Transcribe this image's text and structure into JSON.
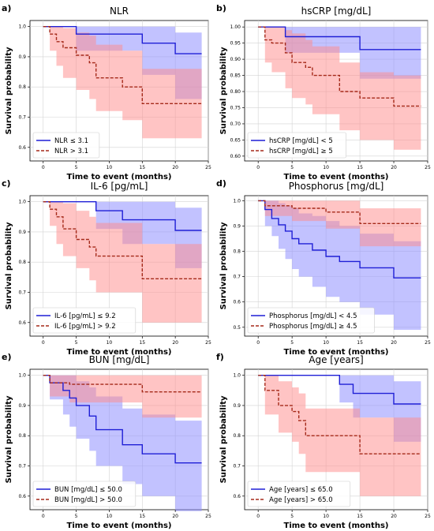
{
  "colors": {
    "group_low": "#1f1fd6",
    "group_high": "#a52a1a",
    "band_low": "#8f8fff",
    "band_high": "#ff8a8a"
  },
  "chart_data": [
    {
      "letter": "a)",
      "type": "line",
      "title": "NLR",
      "xlabel": "Time to event (months)",
      "ylabel": "Survival probability",
      "xlim": [
        -2,
        25
      ],
      "ylim": [
        0.555,
        1.02
      ],
      "xticks": [
        0,
        5,
        10,
        15,
        20,
        25
      ],
      "yticks": [
        0.6,
        0.7,
        0.8,
        0.9,
        1.0
      ],
      "ytick_labels": [
        "0.6",
        "0.7",
        "0.8",
        "0.9",
        "1.0"
      ],
      "grid": true,
      "legend_placement": "lower-left",
      "series": [
        {
          "name": "NLR ≤ 3.1",
          "style": "solid",
          "x": [
            0,
            5,
            15,
            20,
            24
          ],
          "y": [
            1.0,
            0.975,
            0.945,
            0.91,
            0.91
          ],
          "lower": [
            1.0,
            0.92,
            0.84,
            0.76,
            0.76
          ],
          "upper": [
            1.0,
            1.0,
            1.0,
            0.98,
            0.98
          ]
        },
        {
          "name": "NLR > 3.1",
          "style": "dashed",
          "x": [
            0,
            1,
            2,
            3,
            5,
            7,
            8,
            12,
            15,
            24
          ],
          "y": [
            1.0,
            0.975,
            0.95,
            0.93,
            0.905,
            0.88,
            0.83,
            0.8,
            0.745,
            0.745
          ],
          "lower": [
            1.0,
            0.92,
            0.87,
            0.83,
            0.79,
            0.76,
            0.72,
            0.69,
            0.63,
            0.63
          ],
          "upper": [
            1.0,
            1.0,
            1.0,
            0.995,
            0.98,
            0.97,
            0.94,
            0.92,
            0.86,
            0.86
          ]
        }
      ]
    },
    {
      "letter": "b)",
      "type": "line",
      "title": "hsCRP [mg/dL]",
      "xlabel": "Time to event (months)",
      "ylabel": "Survival probability",
      "xlim": [
        -2,
        25
      ],
      "ylim": [
        0.585,
        1.02
      ],
      "xticks": [
        0,
        5,
        10,
        15,
        20,
        25
      ],
      "yticks": [
        0.6,
        0.65,
        0.7,
        0.75,
        0.8,
        0.85,
        0.9,
        0.95,
        1.0
      ],
      "ytick_labels": [
        "0.60",
        "0.65",
        "0.70",
        "0.75",
        "0.80",
        "0.85",
        "0.90",
        "0.95",
        "1.00"
      ],
      "grid": true,
      "legend_placement": "lower-left",
      "series": [
        {
          "name": "hsCRP [mg/dL] < 5",
          "style": "solid",
          "x": [
            0,
            4,
            15,
            24
          ],
          "y": [
            1.0,
            0.97,
            0.93,
            0.93
          ],
          "lower": [
            1.0,
            0.92,
            0.84,
            0.84
          ],
          "upper": [
            1.0,
            1.0,
            1.0,
            1.0
          ]
        },
        {
          "name": "hsCRP [mg/dL] ≥ 5",
          "style": "dashed",
          "x": [
            0,
            1,
            2,
            4,
            5,
            7,
            8,
            12,
            15,
            20,
            24
          ],
          "y": [
            1.0,
            0.96,
            0.95,
            0.92,
            0.89,
            0.875,
            0.85,
            0.8,
            0.78,
            0.755,
            0.755
          ],
          "lower": [
            1.0,
            0.89,
            0.86,
            0.81,
            0.78,
            0.76,
            0.73,
            0.68,
            0.65,
            0.62,
            0.62
          ],
          "upper": [
            1.0,
            1.0,
            1.0,
            0.99,
            0.98,
            0.96,
            0.94,
            0.89,
            0.86,
            0.85,
            0.85
          ]
        }
      ]
    },
    {
      "letter": "c)",
      "type": "line",
      "title": "IL-6 [pg/mL]",
      "xlabel": "Time to event (months)",
      "ylabel": "Survival probability",
      "xlim": [
        -2,
        25
      ],
      "ylim": [
        0.555,
        1.02
      ],
      "xticks": [
        0,
        5,
        10,
        15,
        20,
        25
      ],
      "yticks": [
        0.6,
        0.7,
        0.8,
        0.9,
        1.0
      ],
      "ytick_labels": [
        "0.6",
        "0.7",
        "0.8",
        "0.9",
        "1.0"
      ],
      "grid": true,
      "legend_placement": "lower-left",
      "series": [
        {
          "name": "IL-6 [pg/mL] ≤ 9.2",
          "style": "solid",
          "x": [
            0,
            8,
            12,
            20,
            24
          ],
          "y": [
            1.0,
            0.97,
            0.94,
            0.905,
            0.905
          ],
          "lower": [
            1.0,
            0.91,
            0.86,
            0.78,
            0.78
          ],
          "upper": [
            1.0,
            1.0,
            1.0,
            0.98,
            0.98
          ]
        },
        {
          "name": "IL-6 [pg/mL] > 9.2",
          "style": "dashed",
          "x": [
            0,
            1,
            2,
            3,
            5,
            7,
            8,
            15,
            24
          ],
          "y": [
            1.0,
            0.975,
            0.95,
            0.91,
            0.875,
            0.85,
            0.82,
            0.745,
            0.745
          ],
          "lower": [
            1.0,
            0.92,
            0.86,
            0.82,
            0.78,
            0.74,
            0.7,
            0.6,
            0.6
          ],
          "upper": [
            1.0,
            1.0,
            1.0,
            0.995,
            0.97,
            0.95,
            0.93,
            0.86,
            0.86
          ]
        }
      ]
    },
    {
      "letter": "d)",
      "type": "line",
      "title": "Phosphorus [mg/dL]",
      "xlabel": "Time to event (months)",
      "ylabel": "Survival probability",
      "xlim": [
        -2,
        25
      ],
      "ylim": [
        0.465,
        1.02
      ],
      "xticks": [
        0,
        5,
        10,
        15,
        20,
        25
      ],
      "yticks": [
        0.5,
        0.6,
        0.7,
        0.8,
        0.9,
        1.0
      ],
      "ytick_labels": [
        "0.5",
        "0.6",
        "0.7",
        "0.8",
        "0.9",
        "1.0"
      ],
      "grid": true,
      "legend_placement": "lower-left",
      "series": [
        {
          "name": "Phosphorus [mg/dL] < 4.5",
          "style": "solid",
          "x": [
            0,
            1,
            2,
            3,
            4,
            5,
            6,
            8,
            10,
            12,
            15,
            20,
            24
          ],
          "y": [
            1.0,
            0.965,
            0.93,
            0.905,
            0.88,
            0.85,
            0.83,
            0.805,
            0.78,
            0.76,
            0.735,
            0.695,
            0.695
          ],
          "lower": [
            1.0,
            0.9,
            0.86,
            0.81,
            0.77,
            0.73,
            0.7,
            0.66,
            0.62,
            0.6,
            0.55,
            0.49,
            0.49
          ],
          "upper": [
            1.0,
            1.0,
            1.0,
            0.99,
            0.98,
            0.97,
            0.95,
            0.94,
            0.92,
            0.9,
            0.87,
            0.84,
            0.84
          ]
        },
        {
          "name": "Phosphorus [mg/dL] ≥ 4.5",
          "style": "dashed",
          "x": [
            0,
            1,
            5,
            10,
            15,
            24
          ],
          "y": [
            1.0,
            0.98,
            0.97,
            0.955,
            0.91,
            0.91
          ],
          "lower": [
            1.0,
            0.94,
            0.92,
            0.89,
            0.82,
            0.82
          ],
          "upper": [
            1.0,
            1.0,
            1.0,
            1.0,
            0.97,
            0.97
          ]
        }
      ]
    },
    {
      "letter": "e)",
      "type": "line",
      "title": "BUN [mg/dL]",
      "xlabel": "Time to event (months)",
      "ylabel": "Survival probability",
      "xlim": [
        -2,
        25
      ],
      "ylim": [
        0.555,
        1.02
      ],
      "xticks": [
        0,
        5,
        10,
        15,
        20,
        25
      ],
      "yticks": [
        0.6,
        0.7,
        0.8,
        0.9,
        1.0
      ],
      "ytick_labels": [
        "0.6",
        "0.7",
        "0.8",
        "0.9",
        "1.0"
      ],
      "grid": true,
      "legend_placement": "lower-left",
      "series": [
        {
          "name": "BUN [mg/dL] ≤ 50.0",
          "style": "solid",
          "x": [
            0,
            1,
            3,
            4,
            5,
            7,
            8,
            12,
            15,
            20,
            24
          ],
          "y": [
            1.0,
            0.975,
            0.95,
            0.925,
            0.9,
            0.865,
            0.82,
            0.77,
            0.74,
            0.71,
            0.71
          ],
          "lower": [
            1.0,
            0.92,
            0.87,
            0.83,
            0.79,
            0.75,
            0.7,
            0.64,
            0.6,
            0.55,
            0.55
          ],
          "upper": [
            1.0,
            1.0,
            1.0,
            1.0,
            0.98,
            0.96,
            0.93,
            0.89,
            0.87,
            0.85,
            0.85
          ]
        },
        {
          "name": "BUN [mg/dL] > 50.0",
          "style": "dashed",
          "x": [
            0,
            1,
            4,
            15,
            24
          ],
          "y": [
            1.0,
            0.975,
            0.97,
            0.945,
            0.945
          ],
          "lower": [
            1.0,
            0.93,
            0.91,
            0.86,
            0.86
          ],
          "upper": [
            1.0,
            1.0,
            1.0,
            1.0,
            1.0
          ]
        }
      ]
    },
    {
      "letter": "f)",
      "type": "line",
      "title": "Age [years]",
      "xlabel": "Time to event (months)",
      "ylabel": "Survival probability",
      "xlim": [
        -2,
        25
      ],
      "ylim": [
        0.555,
        1.02
      ],
      "xticks": [
        0,
        5,
        10,
        15,
        20,
        25
      ],
      "yticks": [
        0.6,
        0.7,
        0.8,
        0.9,
        1.0
      ],
      "ytick_labels": [
        "0.6",
        "0.7",
        "0.8",
        "0.9",
        "1.0"
      ],
      "grid": true,
      "legend_placement": "lower-left",
      "series": [
        {
          "name": "Age [years] ≤ 65.0",
          "style": "solid",
          "x": [
            0,
            12,
            14,
            20,
            24
          ],
          "y": [
            1.0,
            0.97,
            0.94,
            0.905,
            0.905
          ],
          "lower": [
            1.0,
            0.91,
            0.86,
            0.78,
            0.78
          ],
          "upper": [
            1.0,
            1.0,
            1.0,
            0.98,
            0.98
          ]
        },
        {
          "name": "Age [years] > 65.0",
          "style": "dashed",
          "x": [
            0,
            1,
            3,
            5,
            6,
            7,
            15,
            24
          ],
          "y": [
            1.0,
            0.95,
            0.9,
            0.88,
            0.85,
            0.8,
            0.74,
            0.74
          ],
          "lower": [
            1.0,
            0.87,
            0.81,
            0.78,
            0.74,
            0.68,
            0.6,
            0.6
          ],
          "upper": [
            1.0,
            1.0,
            0.98,
            0.96,
            0.94,
            0.89,
            0.86,
            0.86
          ]
        }
      ]
    }
  ]
}
